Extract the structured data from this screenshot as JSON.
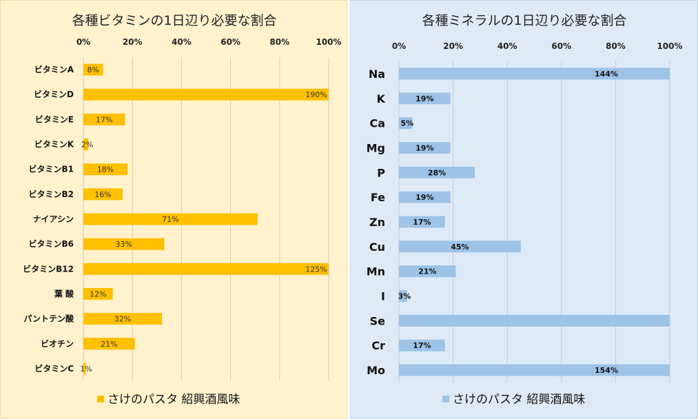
{
  "chart_data": [
    {
      "type": "bar",
      "orientation": "horizontal",
      "title": "各種ビタミンの1日辺り必要な割合",
      "categories": [
        "ビタミンA",
        "ビタミンD",
        "ビタミンE",
        "ビタミンK",
        "ビタミンB1",
        "ビタミンB2",
        "ナイアシン",
        "ビタミンB6",
        "ビタミンB12",
        "葉 酸",
        "パントテン酸",
        "ビオチン",
        "ビタミンC"
      ],
      "values": [
        8,
        190,
        17,
        2,
        18,
        16,
        71,
        33,
        125,
        12,
        32,
        21,
        1
      ],
      "value_labels": [
        "8%",
        "190%",
        "17%",
        "2%",
        "18%",
        "16%",
        "71%",
        "33%",
        "125%",
        "12%",
        "32%",
        "21%",
        "1%"
      ],
      "xlim": [
        0,
        100
      ],
      "ticks": [
        "0%",
        "20%",
        "40%",
        "60%",
        "80%",
        "100%"
      ],
      "tick_values": [
        0,
        20,
        40,
        60,
        80,
        100
      ],
      "grid": true,
      "legend": "さけのパスタ 紹興酒風味",
      "legend_position": "bottom",
      "color": "#ffc000"
    },
    {
      "type": "bar",
      "orientation": "horizontal",
      "title": "各種ミネラルの1日辺り必要な割合",
      "categories": [
        "Na",
        "K",
        "Ca",
        "Mg",
        "P",
        "Fe",
        "Zn",
        "Cu",
        "Mn",
        "I",
        "Se",
        "Cr",
        "Mo"
      ],
      "values": [
        144,
        19,
        5,
        19,
        28,
        19,
        17,
        45,
        21,
        3,
        100,
        17,
        154
      ],
      "value_labels": [
        "144%",
        "19%",
        "5%",
        "19%",
        "28%",
        "19%",
        "17%",
        "45%",
        "21%",
        "3%",
        "",
        "17%",
        "154%"
      ],
      "xlim": [
        0,
        100
      ],
      "ticks": [
        "0%",
        "20%",
        "40%",
        "60%",
        "80%",
        "100%"
      ],
      "tick_values": [
        0,
        20,
        40,
        60,
        80,
        100
      ],
      "grid": true,
      "legend": "さけのパスタ 紹興酒風味",
      "legend_position": "bottom",
      "color": "#9dc3e6"
    }
  ]
}
